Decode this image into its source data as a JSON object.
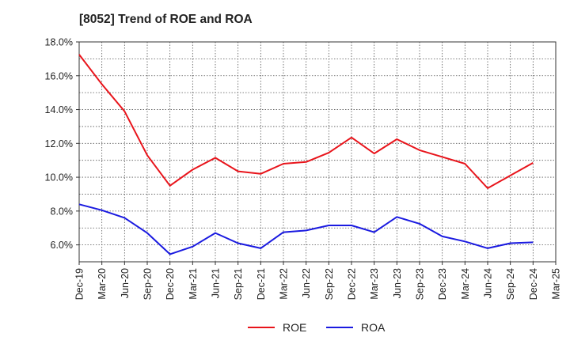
{
  "title": "[8052]  Trend of ROE and ROA",
  "chart_data": {
    "type": "line",
    "title": "[8052]  Trend of ROE and ROA",
    "xlabel": "",
    "ylabel": "",
    "categories": [
      "Dec-19",
      "Mar-20",
      "Jun-20",
      "Sep-20",
      "Dec-20",
      "Mar-21",
      "Jun-21",
      "Sep-21",
      "Dec-21",
      "Mar-22",
      "Jun-22",
      "Sep-22",
      "Dec-22",
      "Mar-23",
      "Jun-23",
      "Sep-23",
      "Dec-23",
      "Mar-24",
      "Jun-24",
      "Sep-24",
      "Dec-24",
      "Mar-25"
    ],
    "y_ticks": [
      "6.0%",
      "8.0%",
      "10.0%",
      "12.0%",
      "14.0%",
      "16.0%",
      "18.0%"
    ],
    "ylim": [
      5.0,
      18.0
    ],
    "grid": true,
    "legend_position": "bottom",
    "series": [
      {
        "name": "ROE",
        "color": "#e8141b",
        "values": [
          17.25,
          15.5,
          13.9,
          11.3,
          9.5,
          10.45,
          11.15,
          10.35,
          10.2,
          10.8,
          10.9,
          11.45,
          12.35,
          11.4,
          12.25,
          11.6,
          11.2,
          10.8,
          9.35,
          10.1,
          10.85,
          null
        ]
      },
      {
        "name": "ROA",
        "color": "#1a1ae0",
        "values": [
          8.4,
          8.05,
          7.6,
          6.7,
          5.45,
          5.9,
          6.7,
          6.1,
          5.8,
          6.75,
          6.85,
          7.15,
          7.15,
          6.75,
          7.65,
          7.25,
          6.5,
          6.2,
          5.8,
          6.1,
          6.15,
          null
        ]
      }
    ]
  }
}
